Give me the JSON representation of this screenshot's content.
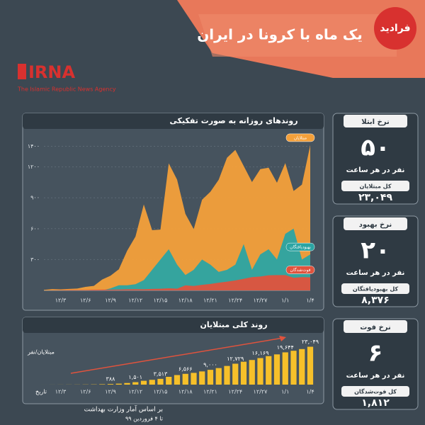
{
  "header": {
    "title": "یک ماه با کرونا در ایران",
    "logo": "فرادید",
    "agency": "IRNA",
    "agency_full": "The Islamic Republic News Agency"
  },
  "chart_data": [
    {
      "type": "area",
      "title": "روندهای روزانه به صورت تفکیکی",
      "categories": [
        null,
        null,
        "۱۲/۳",
        null,
        null,
        "۱۲/۶",
        null,
        null,
        "۱۲/۹",
        null,
        null,
        "۱۲/۱۲",
        null,
        null,
        "۱۲/۱۵",
        null,
        null,
        "۱۲/۱۸",
        null,
        null,
        "۱۲/۲۱",
        null,
        null,
        "۱۲/۲۴",
        null,
        null,
        "۱۲/۲۷",
        null,
        null,
        "۱/۱",
        null,
        null,
        "۱/۴"
      ],
      "series": [
        {
          "name": "مبتلایان",
          "color": "#f4a03a",
          "values": [
            5,
            13,
            10,
            15,
            18,
            34,
            44,
            106,
            143,
            205,
            385,
            523,
            835,
            586,
            591,
            1234,
            1076,
            743,
            595,
            881,
            958,
            1075,
            1289,
            1365,
            1209,
            1053,
            1178,
            1192,
            1046,
            1237,
            966,
            1028,
            1411
          ]
        },
        {
          "name": "بهبودیافتگان",
          "color": "#2ba4a3",
          "values": [
            0,
            0,
            0,
            0,
            0,
            0,
            0,
            0,
            20,
            50,
            50,
            60,
            100,
            200,
            300,
            400,
            250,
            150,
            200,
            300,
            250,
            180,
            200,
            250,
            450,
            200,
            350,
            400,
            300,
            550,
            600,
            300,
            350
          ]
        },
        {
          "name": "فوت‌شدگان",
          "color": "#e0533d",
          "values": [
            0,
            2,
            3,
            4,
            4,
            4,
            7,
            8,
            8,
            9,
            11,
            12,
            11,
            15,
            16,
            21,
            17,
            49,
            43,
            54,
            63,
            75,
            85,
            97,
            113,
            129,
            135,
            147,
            149,
            149,
            123,
            129,
            127
          ]
        }
      ],
      "ylim": [
        0,
        1500
      ],
      "yticks": [
        {
          "value": 300,
          "label": "۳۰۰"
        },
        {
          "value": 600,
          "label": "۶۰۰"
        },
        {
          "value": 900,
          "label": "۹۰۰"
        },
        {
          "value": 1200,
          "label": "۱۲۰۰"
        },
        {
          "value": 1400,
          "label": "۱۴۰۰"
        }
      ],
      "grid": true
    },
    {
      "type": "bar",
      "title": "روند کلی مبتلایان",
      "y_label": "مبتلایان/نفر",
      "x_label": "تاریخ",
      "color": "#f6c02a",
      "categories": [
        null,
        null,
        "۱۲/۳",
        null,
        null,
        "۱۲/۶",
        null,
        null,
        "۱۲/۹",
        null,
        null,
        "۱۲/۱۲",
        null,
        null,
        "۱۲/۱۵",
        null,
        null,
        "۱۲/۱۸",
        null,
        null,
        "۱۲/۲۱",
        null,
        null,
        "۱۲/۲۴",
        null,
        null,
        "۱۲/۲۷",
        null,
        null,
        "۱/۱",
        null,
        null,
        "۱/۴"
      ],
      "values": [
        5,
        18,
        28,
        43,
        61,
        95,
        139,
        245,
        388,
        593,
        978,
        1501,
        2336,
        2922,
        3513,
        4747,
        5823,
        6566,
        7161,
        8042,
        9000,
        10075,
        11364,
        12729,
        13938,
        14991,
        16169,
        17361,
        18407,
        19644,
        20610,
        21638,
        23049
      ],
      "value_labels": [
        null,
        null,
        null,
        null,
        null,
        null,
        null,
        null,
        "۳۸۸",
        null,
        null,
        "۱,۵۰۱",
        null,
        null,
        "۳,۵۱۳",
        null,
        null,
        "۶,۵۶۶",
        null,
        null,
        "۹,۰۰۰",
        null,
        null,
        "۱۲,۷۲۹",
        null,
        null,
        "۱۶,۱۶۹",
        null,
        null,
        "۱۹,۶۴۴",
        null,
        null,
        "۲۳,۰۴۹"
      ],
      "ylim": [
        0,
        25000
      ]
    }
  ],
  "cards": [
    {
      "title": "نرخ ابتلا",
      "rate": "۵۰",
      "unit": "نفر در هر ساعت",
      "total_label": "کل مبتلایان",
      "total": "۲۳,۰۴۹"
    },
    {
      "title": "نرخ بهبود",
      "rate": "۲۰",
      "unit": "نفر در هر ساعت",
      "total_label": "کل بهبودیافتگان",
      "total": "۸,۳۷۶"
    },
    {
      "title": "نرخ فوت",
      "rate": "۶",
      "unit": "نفر در هر ساعت",
      "total_label": "کل فوت‌شدگان",
      "total": "۱,۸۱۲"
    }
  ],
  "footer": {
    "source": "بر اساس آمار وزارت بهداشت",
    "date": "تا ۴ فروردین ۹۹"
  }
}
